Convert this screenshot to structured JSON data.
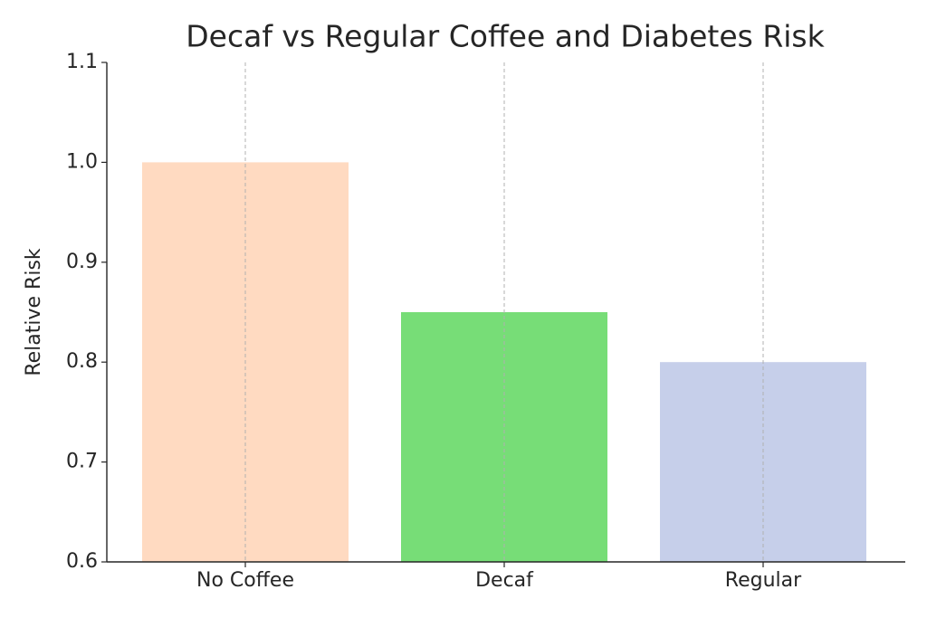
{
  "chart_data": {
    "type": "bar",
    "title": "Decaf vs Regular Coffee and Diabetes Risk",
    "y_label": "Relative Risk",
    "categories": [
      "No Coffee",
      "Decaf",
      "Regular"
    ],
    "values": [
      1.0,
      0.85,
      0.8
    ],
    "colors": [
      "#ffdac1",
      "#77dd77",
      "#c6cfea"
    ],
    "ylim": [
      0.6,
      1.1
    ],
    "yticks": [
      0.6,
      0.7,
      0.8,
      0.9,
      {
        "value": 1,
        "label": "1.0"
      },
      1.1
    ],
    "grid": "x"
  }
}
